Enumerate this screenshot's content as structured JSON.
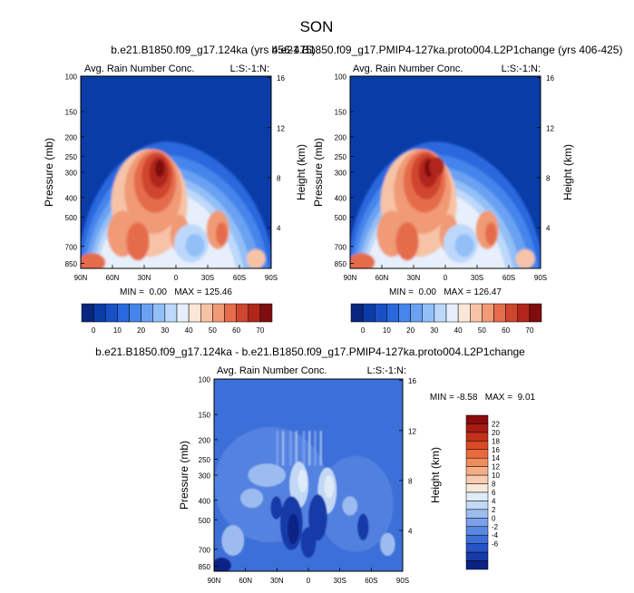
{
  "figure": {
    "title": "SON"
  },
  "axes_common": {
    "pressure_ticks": [
      "100",
      "150",
      "200",
      "250",
      "300",
      "400",
      "500",
      "700",
      "850"
    ],
    "lat_ticks": [
      "90N",
      "60N",
      "30N",
      "0",
      "30S",
      "60S",
      "90S"
    ],
    "height_ticks": [
      "16",
      "12",
      "8",
      "4"
    ],
    "ylabel": "Pressure (mb)",
    "ylabel_right": "Height (km)",
    "panel_subtitle": "Avg. Rain Number Conc.",
    "panel_code": "L:S:-1:N:"
  },
  "chart_data": [
    {
      "type": "heatmap",
      "title": "b.e21.B1850.f09_g17.124ka (yrs 456-475)",
      "subtitle": "Avg. Rain Number Conc.",
      "xlabel": "",
      "ylabel": "Pressure (mb)",
      "ylabel_right": "Height (km)",
      "x_categories": [
        "90N",
        "60N",
        "30N",
        "0",
        "30S",
        "60S",
        "90S"
      ],
      "y_categories": [
        "100",
        "150",
        "200",
        "250",
        "300",
        "400",
        "500",
        "700",
        "850"
      ],
      "min": "0.00",
      "max": "125.46",
      "stats_text": "MIN =  0.00   MAX = 125.46",
      "colorbar": {
        "levels": [
          "0",
          "10",
          "20",
          "30",
          "40",
          "50",
          "60",
          "70"
        ]
      }
    },
    {
      "type": "heatmap",
      "title": "b.e21.B1850.f09_g17.PMIP4-127ka.proto004.L2P1change (yrs 406-425)",
      "subtitle": "Avg. Rain Number Conc.",
      "xlabel": "",
      "ylabel": "Pressure (mb)",
      "ylabel_right": "Height (km)",
      "x_categories": [
        "90N",
        "60N",
        "30N",
        "0",
        "30S",
        "60S",
        "90S"
      ],
      "y_categories": [
        "100",
        "150",
        "200",
        "250",
        "300",
        "400",
        "500",
        "700",
        "850"
      ],
      "min": "0.00",
      "max": "126.47",
      "stats_text": "MIN =  0.00   MAX = 126.47",
      "colorbar": {
        "levels": [
          "0",
          "10",
          "20",
          "30",
          "40",
          "50",
          "60",
          "70"
        ]
      }
    },
    {
      "type": "heatmap",
      "title": "b.e21.B1850.f09_g17.124ka - b.e21.B1850.f09_g17.PMIP4-127ka.proto004.L2P1change",
      "subtitle": "Avg. Rain Number Conc.",
      "xlabel": "",
      "ylabel": "Pressure (mb)",
      "ylabel_right": "Height (km)",
      "x_categories": [
        "90N",
        "60N",
        "30N",
        "0",
        "30S",
        "60S",
        "90S"
      ],
      "y_categories": [
        "100",
        "150",
        "200",
        "250",
        "300",
        "400",
        "500",
        "700",
        "850"
      ],
      "min": "-8.58",
      "max": "9.01",
      "stats_text": "MIN = -8.58   MAX =  9.01",
      "colorbar": {
        "levels": [
          "22",
          "20",
          "18",
          "16",
          "14",
          "12",
          "10",
          "8",
          "6",
          "4",
          "2",
          "0",
          "-2",
          "-4",
          "-6"
        ]
      }
    }
  ],
  "colors": {
    "seq": [
      "#08267e",
      "#0a3ca8",
      "#1851c6",
      "#2a68de",
      "#4585ec",
      "#6aa1f2",
      "#93bff7",
      "#bdd8fb",
      "#e6effb",
      "#fbe7d9",
      "#f6c3a6",
      "#f09a76",
      "#e56c4c",
      "#cf452e",
      "#b0261a",
      "#7f0d0d"
    ],
    "div": [
      "#8a0b0b",
      "#a81b14",
      "#c3301c",
      "#d94a26",
      "#e86a3b",
      "#f08c5c",
      "#f5ad85",
      "#f8ccb0",
      "#f9e8da",
      "#e0ebf8",
      "#c2d8f5",
      "#9cbcef",
      "#7aa1ea",
      "#5a87e2",
      "#3d6fd8",
      "#2553c8",
      "#153aa8",
      "#0b2185"
    ]
  }
}
